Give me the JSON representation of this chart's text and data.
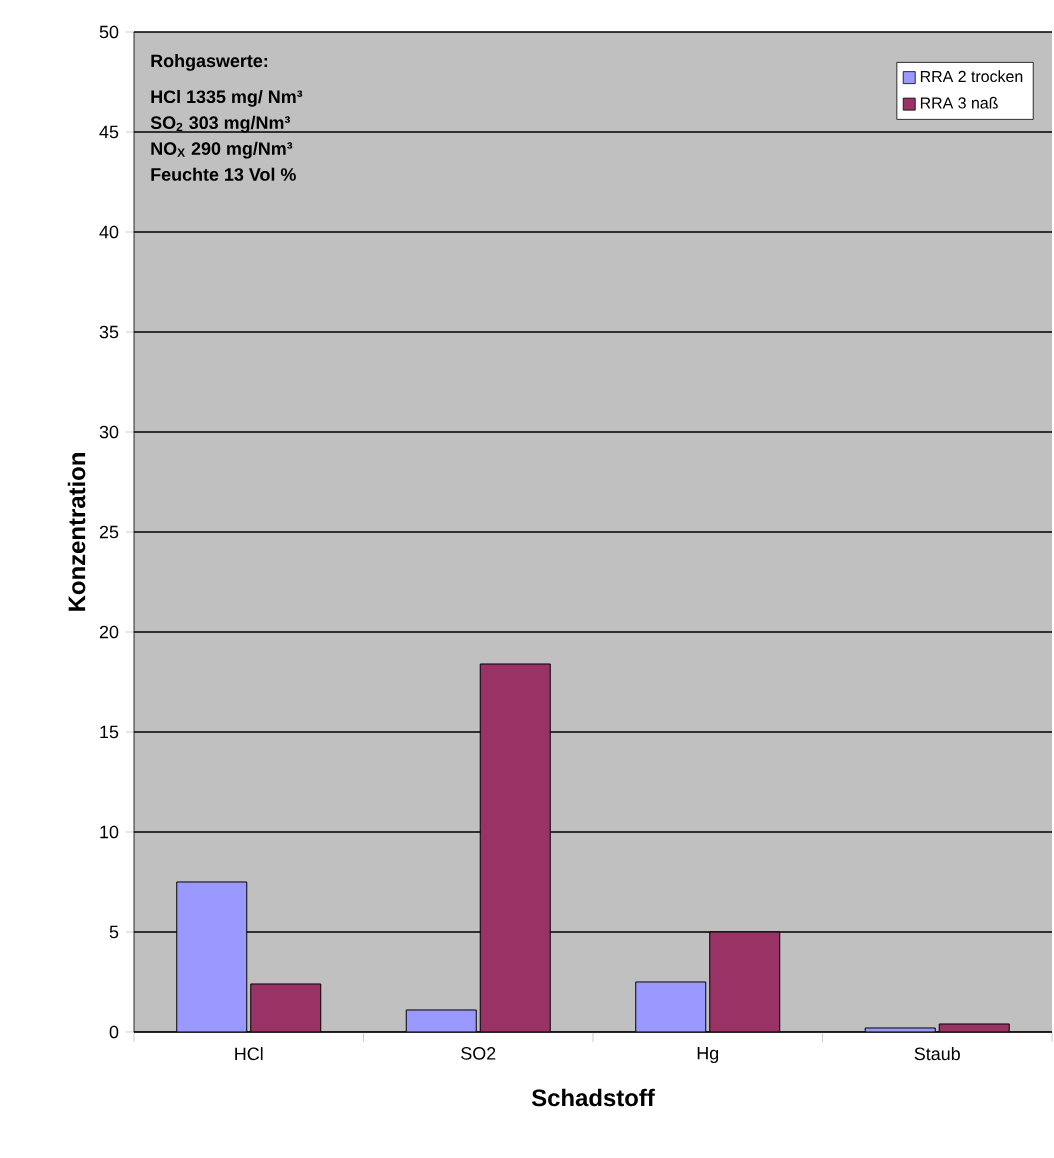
{
  "chart_data": {
    "type": "bar",
    "xlabel": "Schadstoff",
    "ylabel": "Konzentration",
    "categories": [
      "HCl",
      "SO2",
      "Hg",
      "Staub"
    ],
    "series": [
      {
        "name": "RRA 2 trocken",
        "color": "#9999ff",
        "values": [
          7.5,
          1.1,
          2.5,
          0.2
        ]
      },
      {
        "name": "RRA 3 naß",
        "color": "#993366",
        "values": [
          2.4,
          18.4,
          5.0,
          0.4
        ]
      }
    ],
    "ylim": [
      0,
      50
    ],
    "yticks": [
      0,
      5,
      10,
      15,
      20,
      25,
      30,
      35,
      40,
      45,
      50
    ],
    "grid": "y",
    "legend": "top right",
    "annotations": [
      "Rohgaswerte:",
      "HCl  1335 mg/ Nm³",
      "SO$_{2}$  303 mg/Nm³",
      "NO$_{X}$  290 mg/Nm³",
      "Feuchte 13 Vol %"
    ]
  }
}
